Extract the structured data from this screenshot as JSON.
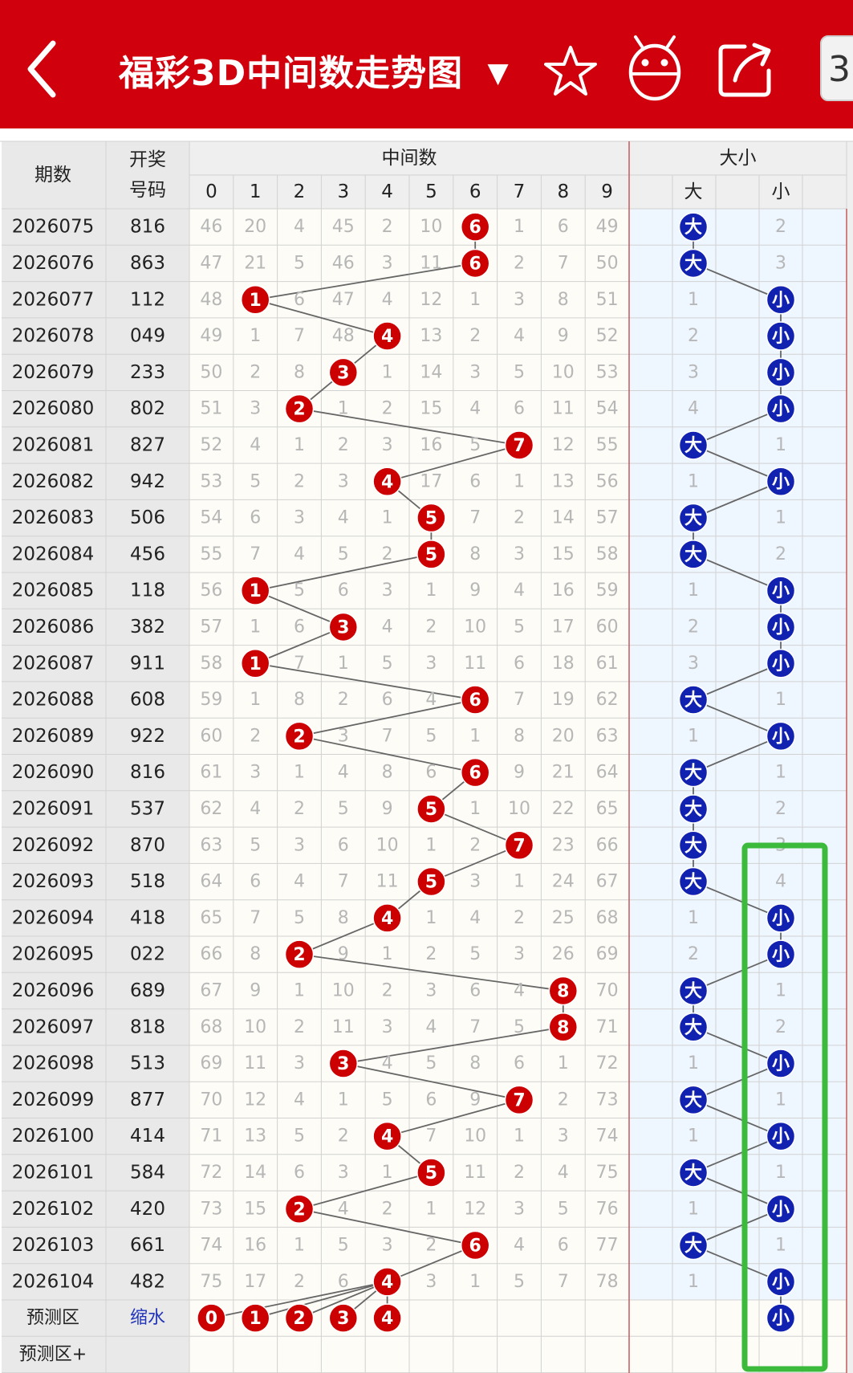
{
  "header": {
    "title": "福彩3D中间数走势图",
    "dropdown_arrow": "▼",
    "icons": [
      "back-arrow-icon",
      "star-icon",
      "robot-icon",
      "share-icon"
    ],
    "cut_tab_label": "3"
  },
  "table": {
    "col_period": "期数",
    "col_draw_line1": "开奖",
    "col_draw_line2": "号码",
    "group_middle": "中间数",
    "group_size": "大小",
    "digits": [
      "0",
      "1",
      "2",
      "3",
      "4",
      "5",
      "6",
      "7",
      "8",
      "9"
    ],
    "size_big": "大",
    "size_small": "小",
    "rows": [
      {
        "period": "2026075",
        "draw": "816",
        "mid": 6,
        "size": "大",
        "miss": [
          46,
          20,
          4,
          45,
          2,
          10,
          null,
          1,
          6,
          49
        ],
        "bigMiss": null,
        "smallMiss": 2
      },
      {
        "period": "2026076",
        "draw": "863",
        "mid": 6,
        "size": "大",
        "miss": [
          47,
          21,
          5,
          46,
          3,
          11,
          null,
          2,
          7,
          50
        ],
        "bigMiss": null,
        "smallMiss": 3
      },
      {
        "period": "2026077",
        "draw": "112",
        "mid": 1,
        "size": "小",
        "miss": [
          48,
          null,
          6,
          47,
          4,
          12,
          1,
          3,
          8,
          51
        ],
        "bigMiss": 1,
        "smallMiss": null
      },
      {
        "period": "2026078",
        "draw": "049",
        "mid": 4,
        "size": "小",
        "miss": [
          49,
          1,
          7,
          48,
          null,
          13,
          2,
          4,
          9,
          52
        ],
        "bigMiss": 2,
        "smallMiss": null
      },
      {
        "period": "2026079",
        "draw": "233",
        "mid": 3,
        "size": "小",
        "miss": [
          50,
          2,
          8,
          null,
          1,
          14,
          3,
          5,
          10,
          53
        ],
        "bigMiss": 3,
        "smallMiss": null
      },
      {
        "period": "2026080",
        "draw": "802",
        "mid": 2,
        "size": "小",
        "miss": [
          51,
          3,
          null,
          1,
          2,
          15,
          4,
          6,
          11,
          54
        ],
        "bigMiss": 4,
        "smallMiss": null
      },
      {
        "period": "2026081",
        "draw": "827",
        "mid": 7,
        "size": "大",
        "miss": [
          52,
          4,
          1,
          2,
          3,
          16,
          5,
          null,
          12,
          55
        ],
        "bigMiss": null,
        "smallMiss": 1
      },
      {
        "period": "2026082",
        "draw": "942",
        "mid": 4,
        "size": "小",
        "miss": [
          53,
          5,
          2,
          3,
          null,
          17,
          6,
          1,
          13,
          56
        ],
        "bigMiss": 1,
        "smallMiss": null
      },
      {
        "period": "2026083",
        "draw": "506",
        "mid": 5,
        "size": "大",
        "miss": [
          54,
          6,
          3,
          4,
          1,
          null,
          7,
          2,
          14,
          57
        ],
        "bigMiss": null,
        "smallMiss": 1
      },
      {
        "period": "2026084",
        "draw": "456",
        "mid": 5,
        "size": "大",
        "miss": [
          55,
          7,
          4,
          5,
          2,
          null,
          8,
          3,
          15,
          58
        ],
        "bigMiss": null,
        "smallMiss": 2
      },
      {
        "period": "2026085",
        "draw": "118",
        "mid": 1,
        "size": "小",
        "miss": [
          56,
          null,
          5,
          6,
          3,
          1,
          9,
          4,
          16,
          59
        ],
        "bigMiss": 1,
        "smallMiss": null
      },
      {
        "period": "2026086",
        "draw": "382",
        "mid": 3,
        "size": "小",
        "miss": [
          57,
          1,
          6,
          null,
          4,
          2,
          10,
          5,
          17,
          60
        ],
        "bigMiss": 2,
        "smallMiss": null
      },
      {
        "period": "2026087",
        "draw": "911",
        "mid": 1,
        "size": "小",
        "miss": [
          58,
          null,
          7,
          1,
          5,
          3,
          11,
          6,
          18,
          61
        ],
        "bigMiss": 3,
        "smallMiss": null
      },
      {
        "period": "2026088",
        "draw": "608",
        "mid": 6,
        "size": "大",
        "miss": [
          59,
          1,
          8,
          2,
          6,
          4,
          null,
          7,
          19,
          62
        ],
        "bigMiss": null,
        "smallMiss": 1
      },
      {
        "period": "2026089",
        "draw": "922",
        "mid": 2,
        "size": "小",
        "miss": [
          60,
          2,
          null,
          3,
          7,
          5,
          1,
          8,
          20,
          63
        ],
        "bigMiss": 1,
        "smallMiss": null
      },
      {
        "period": "2026090",
        "draw": "816",
        "mid": 6,
        "size": "大",
        "miss": [
          61,
          3,
          1,
          4,
          8,
          6,
          null,
          9,
          21,
          64
        ],
        "bigMiss": null,
        "smallMiss": 1
      },
      {
        "period": "2026091",
        "draw": "537",
        "mid": 5,
        "size": "大",
        "miss": [
          62,
          4,
          2,
          5,
          9,
          null,
          1,
          10,
          22,
          65
        ],
        "bigMiss": null,
        "smallMiss": 2
      },
      {
        "period": "2026092",
        "draw": "870",
        "mid": 7,
        "size": "大",
        "miss": [
          63,
          5,
          3,
          6,
          10,
          1,
          2,
          null,
          23,
          66
        ],
        "bigMiss": null,
        "smallMiss": 3
      },
      {
        "period": "2026093",
        "draw": "518",
        "mid": 5,
        "size": "大",
        "miss": [
          64,
          6,
          4,
          7,
          11,
          null,
          3,
          1,
          24,
          67
        ],
        "bigMiss": null,
        "smallMiss": 4
      },
      {
        "period": "2026094",
        "draw": "418",
        "mid": 4,
        "size": "小",
        "miss": [
          65,
          7,
          5,
          8,
          null,
          1,
          4,
          2,
          25,
          68
        ],
        "bigMiss": 1,
        "smallMiss": null
      },
      {
        "period": "2026095",
        "draw": "022",
        "mid": 2,
        "size": "小",
        "miss": [
          66,
          8,
          null,
          9,
          1,
          2,
          5,
          3,
          26,
          69
        ],
        "bigMiss": 2,
        "smallMiss": null
      },
      {
        "period": "2026096",
        "draw": "689",
        "mid": 8,
        "size": "大",
        "miss": [
          67,
          9,
          1,
          10,
          2,
          3,
          6,
          4,
          null,
          70
        ],
        "bigMiss": null,
        "smallMiss": 1
      },
      {
        "period": "2026097",
        "draw": "818",
        "mid": 8,
        "size": "大",
        "miss": [
          68,
          10,
          2,
          11,
          3,
          4,
          7,
          5,
          null,
          71
        ],
        "bigMiss": null,
        "smallMiss": 2
      },
      {
        "period": "2026098",
        "draw": "513",
        "mid": 3,
        "size": "小",
        "miss": [
          69,
          11,
          3,
          null,
          4,
          5,
          8,
          6,
          1,
          72
        ],
        "bigMiss": 1,
        "smallMiss": null
      },
      {
        "period": "2026099",
        "draw": "877",
        "mid": 7,
        "size": "大",
        "miss": [
          70,
          12,
          4,
          1,
          5,
          6,
          9,
          null,
          2,
          73
        ],
        "bigMiss": null,
        "smallMiss": 1
      },
      {
        "period": "2026100",
        "draw": "414",
        "mid": 4,
        "size": "小",
        "miss": [
          71,
          13,
          5,
          2,
          null,
          7,
          10,
          1,
          3,
          74
        ],
        "bigMiss": 1,
        "smallMiss": null
      },
      {
        "period": "2026101",
        "draw": "584",
        "mid": 5,
        "size": "大",
        "miss": [
          72,
          14,
          6,
          3,
          1,
          null,
          11,
          2,
          4,
          75
        ],
        "bigMiss": null,
        "smallMiss": 1
      },
      {
        "period": "2026102",
        "draw": "420",
        "mid": 2,
        "size": "小",
        "miss": [
          73,
          15,
          null,
          4,
          2,
          1,
          12,
          3,
          5,
          76
        ],
        "bigMiss": 1,
        "smallMiss": null
      },
      {
        "period": "2026103",
        "draw": "661",
        "mid": 6,
        "size": "大",
        "miss": [
          74,
          16,
          1,
          5,
          3,
          2,
          null,
          4,
          6,
          77
        ],
        "bigMiss": null,
        "smallMiss": 1
      },
      {
        "period": "2026104",
        "draw": "482",
        "mid": 4,
        "size": "小",
        "miss": [
          75,
          17,
          2,
          6,
          null,
          3,
          1,
          5,
          7,
          78
        ],
        "bigMiss": 1,
        "smallMiss": null
      }
    ],
    "prediction": {
      "label": "预测区",
      "draw_link": "缩水",
      "balls": [
        0,
        1,
        2,
        3,
        4
      ],
      "size": "小"
    },
    "prediction_plus": {
      "label": "预测区+"
    }
  },
  "colors": {
    "header_red": "#d0000d",
    "ball_red": "#cc0000",
    "ball_blue": "#1122b0",
    "highlight_green": "#3cba3c",
    "miss_text": "#b7b7b7",
    "size_area_bg": "#eef6ff"
  }
}
